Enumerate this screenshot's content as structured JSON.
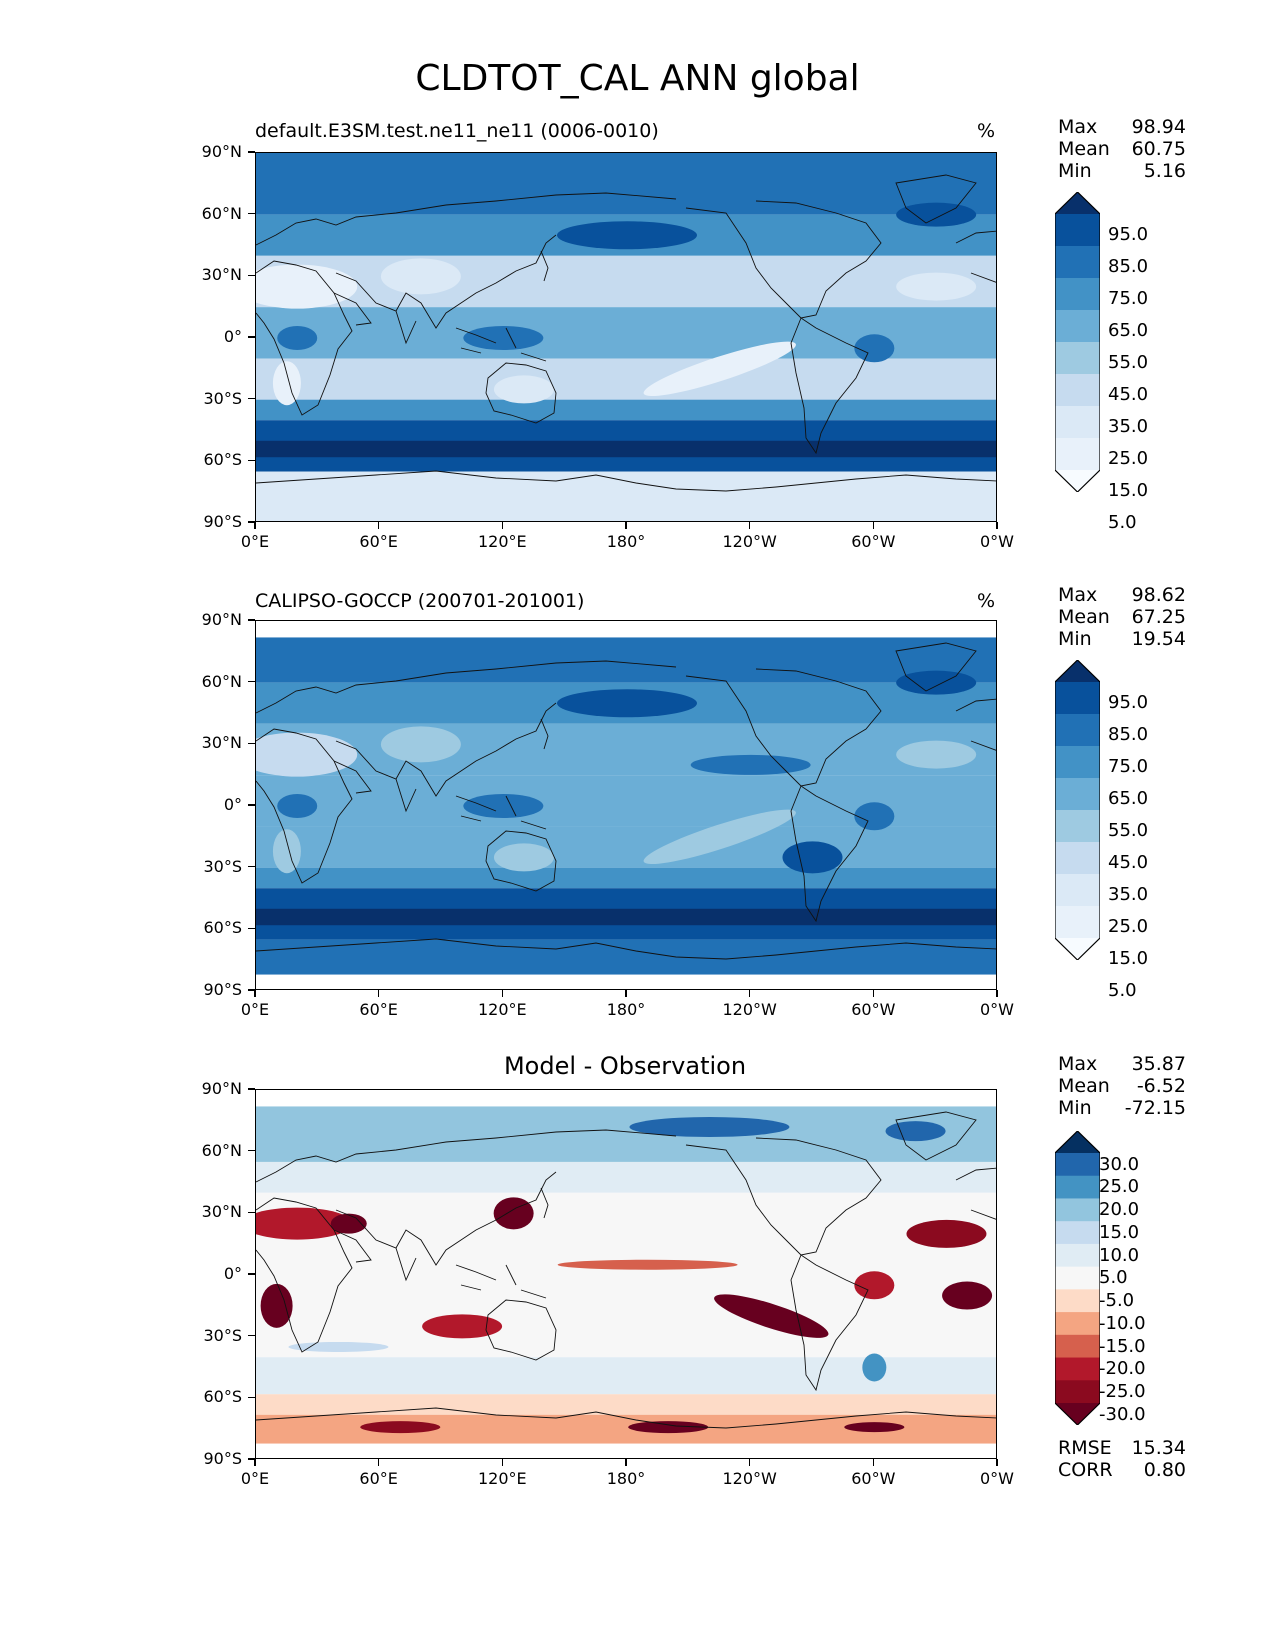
{
  "figure": {
    "title": "CLDTOT_CAL ANN global"
  },
  "chart_data": [
    {
      "type": "heatmap",
      "panel": "test",
      "title": "default.E3SM.test.ne11_ne11 (0006-0010)",
      "units": "%",
      "stats": {
        "max_label": "Max",
        "max": "98.94",
        "mean_label": "Mean",
        "mean": "60.75",
        "min_label": "Min",
        "min": "5.16"
      },
      "colorbar": {
        "levels": [
          "95.0",
          "85.0",
          "75.0",
          "65.0",
          "55.0",
          "45.0",
          "35.0",
          "25.0",
          "15.0",
          "5.0"
        ],
        "colors": [
          "#08306b",
          "#08519c",
          "#2171b5",
          "#4292c6",
          "#6baed6",
          "#9ecae1",
          "#c6dbef",
          "#dbe9f6",
          "#e8f1fa",
          "#f7fbff"
        ],
        "extend": "both"
      },
      "xticks": [
        "0°E",
        "60°E",
        "120°E",
        "180°",
        "120°W",
        "60°W",
        "0°W"
      ],
      "yticks": [
        "90°N",
        "60°N",
        "30°N",
        "0°",
        "30°S",
        "60°S",
        "90°S"
      ],
      "xlim": [
        0,
        360
      ],
      "ylim": [
        -90,
        90
      ]
    },
    {
      "type": "heatmap",
      "panel": "reference",
      "title": "CALIPSO-GOCCP (200701-201001)",
      "units": "%",
      "stats": {
        "max_label": "Max",
        "max": "98.62",
        "mean_label": "Mean",
        "mean": "67.25",
        "min_label": "Min",
        "min": "19.54"
      },
      "colorbar": {
        "levels": [
          "95.0",
          "85.0",
          "75.0",
          "65.0",
          "55.0",
          "45.0",
          "35.0",
          "25.0",
          "15.0",
          "5.0"
        ],
        "colors": [
          "#08306b",
          "#08519c",
          "#2171b5",
          "#4292c6",
          "#6baed6",
          "#9ecae1",
          "#c6dbef",
          "#dbe9f6",
          "#e8f1fa",
          "#f7fbff"
        ],
        "extend": "both"
      },
      "xticks": [
        "0°E",
        "60°E",
        "120°E",
        "180°",
        "120°W",
        "60°W",
        "0°W"
      ],
      "yticks": [
        "90°N",
        "60°N",
        "30°N",
        "0°",
        "30°S",
        "60°S",
        "90°S"
      ],
      "xlim": [
        0,
        360
      ],
      "ylim": [
        -90,
        90
      ]
    },
    {
      "type": "heatmap",
      "panel": "difference",
      "title": "Model - Observation",
      "units": "",
      "stats": {
        "max_label": "Max",
        "max": "35.87",
        "mean_label": "Mean",
        "mean": "-6.52",
        "min_label": "Min",
        "min": "-72.15"
      },
      "metrics": {
        "rmse_label": "RMSE",
        "rmse": "15.34",
        "corr_label": "CORR",
        "corr": "0.80"
      },
      "colorbar": {
        "levels": [
          "30.0",
          "25.0",
          "20.0",
          "15.0",
          "10.0",
          "5.0",
          "-5.0",
          "-10.0",
          "-15.0",
          "-20.0",
          "-25.0",
          "-30.0"
        ],
        "colors": [
          "#053061",
          "#2166ac",
          "#4393c3",
          "#92c5de",
          "#c6dbef",
          "#e0ecf4",
          "#f7f7f7",
          "#fddbc7",
          "#f4a582",
          "#d6604d",
          "#b2182b",
          "#8b0a1f",
          "#67001f"
        ],
        "extend": "both"
      },
      "xticks": [
        "0°E",
        "60°E",
        "120°E",
        "180°",
        "120°W",
        "60°W",
        "0°W"
      ],
      "yticks": [
        "90°N",
        "60°N",
        "30°N",
        "0°",
        "30°S",
        "60°S",
        "90°S"
      ],
      "xlim": [
        0,
        360
      ],
      "ylim": [
        -90,
        90
      ]
    }
  ]
}
